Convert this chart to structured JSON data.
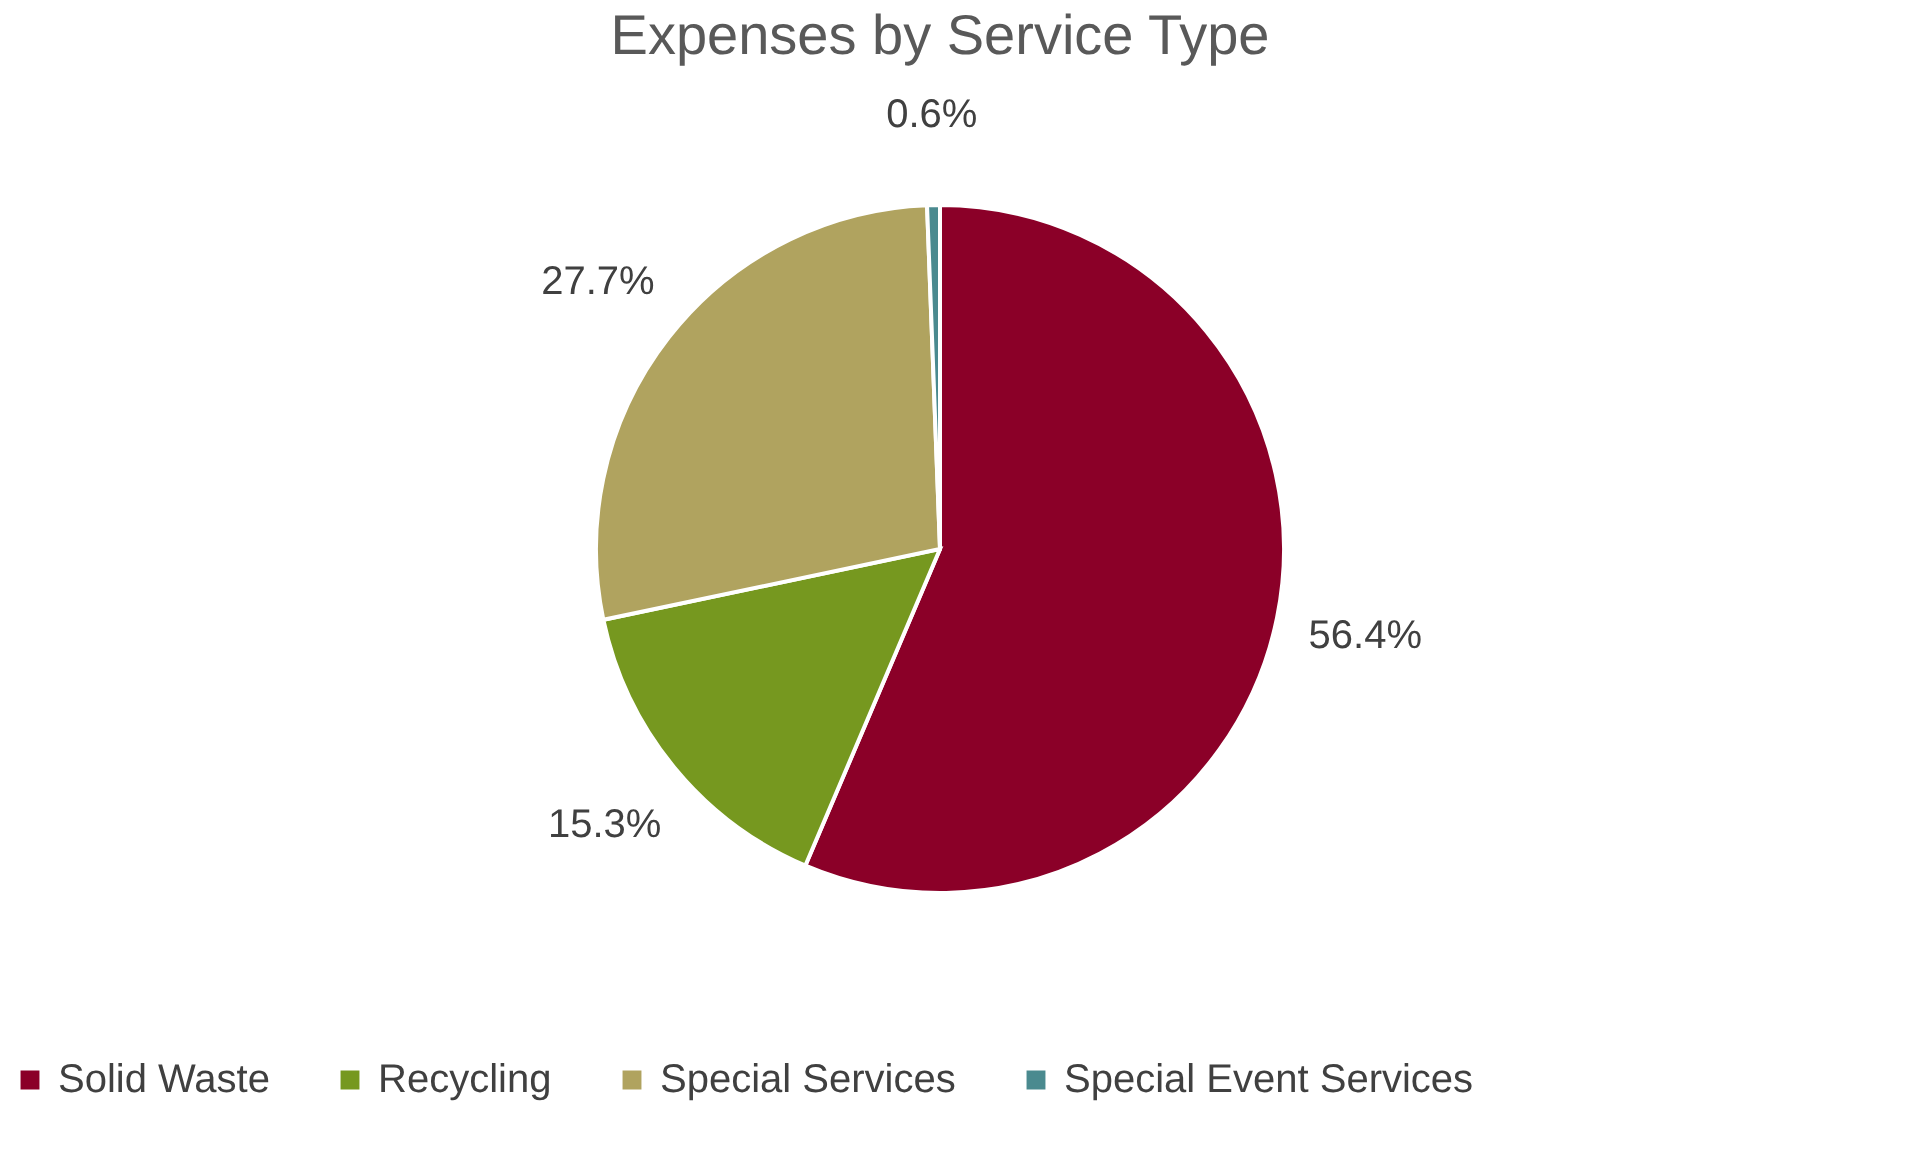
{
  "chart_data": {
    "type": "pie",
    "title": "Expenses by Service Type",
    "categories": [
      "Solid Waste",
      "Recycling",
      "Special Services",
      "Special Event Services"
    ],
    "values": [
      56.4,
      15.3,
      27.7,
      0.6
    ],
    "colors": [
      "#8b0028",
      "#76981f",
      "#b0a35f",
      "#4a8a8f"
    ],
    "value_labels": [
      "56.4%",
      "15.3%",
      "27.7%",
      "0.6%"
    ],
    "legend": "bottom"
  }
}
